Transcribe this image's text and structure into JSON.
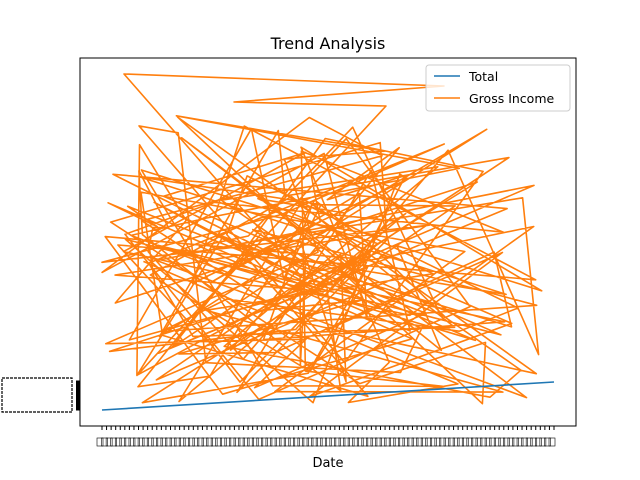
{
  "chart_data": {
    "type": "line",
    "title": "Trend Analysis",
    "xlabel": "Date",
    "ylabel": "",
    "legend_position": "top-right",
    "grid": false,
    "series": [
      {
        "name": "Total",
        "color": "#1f77b4",
        "values_note_free": true,
        "y_start": 0,
        "y_end": 100
      },
      {
        "name": "Gross Income",
        "color": "#ff7f0e",
        "point_count": 220
      }
    ]
  }
}
